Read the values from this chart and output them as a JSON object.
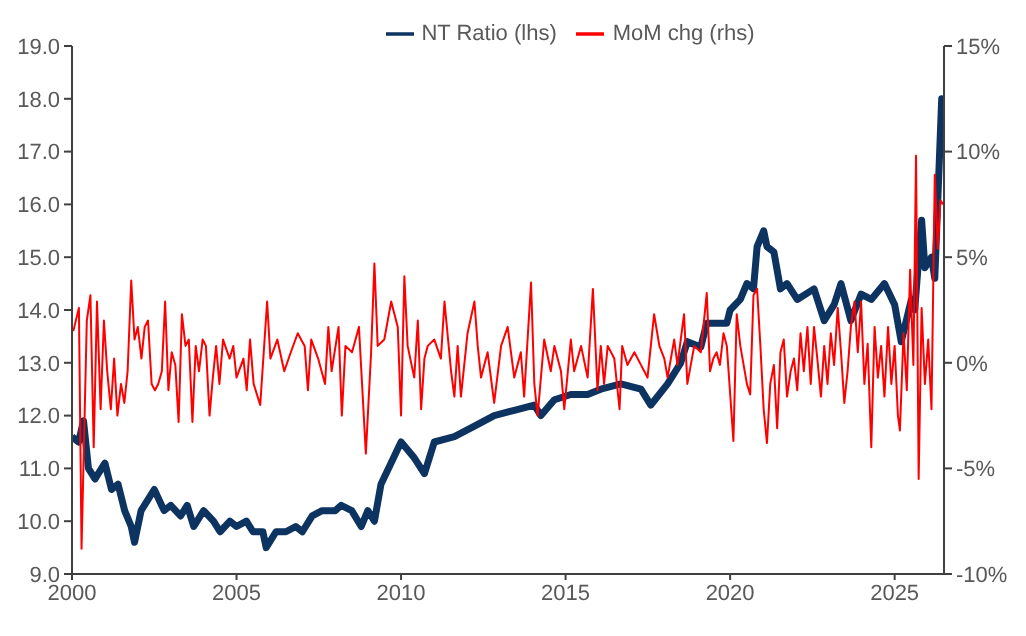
{
  "chart_data": {
    "type": "line",
    "legend": "top",
    "grid": false,
    "marker": "none",
    "line_style": "solid",
    "xlim": [
      2000,
      2026.5
    ],
    "xticks": [
      2000,
      2005,
      2010,
      2015,
      2020,
      2025
    ],
    "ylim": [
      9,
      19
    ],
    "yticks": [
      {
        "value": 9,
        "label": "9.0"
      },
      {
        "value": 10,
        "label": "10.0"
      },
      {
        "value": 11,
        "label": "11.0"
      },
      {
        "value": 12,
        "label": "12.0"
      },
      {
        "value": 13,
        "label": "13.0"
      },
      {
        "value": 14,
        "label": "14.0"
      },
      {
        "value": 15,
        "label": "15.0"
      },
      {
        "value": 16,
        "label": "16.0"
      },
      {
        "value": 17,
        "label": "17.0"
      },
      {
        "value": 18,
        "label": "18.0"
      },
      {
        "value": 19,
        "label": "19.0"
      }
    ],
    "y2lim": [
      -10,
      15
    ],
    "y2ticks": [
      {
        "value": -10,
        "label": "-10%"
      },
      {
        "value": -5,
        "label": "-5%"
      },
      {
        "value": 0,
        "label": "0%"
      },
      {
        "value": 5,
        "label": "5%"
      },
      {
        "value": 10,
        "label": "10%"
      },
      {
        "value": 15,
        "label": "15%"
      }
    ],
    "series": [
      {
        "name": "NT Ratio (lhs)",
        "color": "#0d3361",
        "x": [
          2000.0,
          2000.2,
          2000.35,
          2000.5,
          2000.7,
          2000.9,
          2001.0,
          2001.2,
          2001.4,
          2001.6,
          2001.8,
          2001.9,
          2002.1,
          2002.3,
          2002.5,
          2002.8,
          2003.0,
          2003.3,
          2003.5,
          2003.7,
          2004.0,
          2004.3,
          2004.5,
          2004.8,
          2005.0,
          2005.3,
          2005.5,
          2005.8,
          2005.9,
          2006.2,
          2006.5,
          2006.8,
          2007.0,
          2007.3,
          2007.6,
          2008.0,
          2008.18,
          2008.5,
          2008.79,
          2008.99,
          2009.19,
          2009.39,
          2010.0,
          2010.4,
          2010.71,
          2011.01,
          2011.62,
          2012.23,
          2012.83,
          2013.44,
          2014.05,
          2014.25,
          2014.66,
          2015.16,
          2015.67,
          2016.07,
          2016.68,
          2017.29,
          2017.59,
          2018.1,
          2018.5,
          2018.7,
          2019.11,
          2019.29,
          2019.9,
          2020.0,
          2020.31,
          2020.51,
          2020.71,
          2020.82,
          2021.02,
          2021.12,
          2021.33,
          2021.53,
          2021.73,
          2022.04,
          2022.55,
          2022.86,
          2023.16,
          2023.37,
          2023.67,
          2023.98,
          2024.29,
          2024.69,
          2025.0,
          2025.2,
          2025.51,
          2025.61,
          2025.82,
          2025.92,
          2026.12,
          2026.22,
          2026.43,
          2026.49
        ],
        "values": [
          11.6,
          11.5,
          11.9,
          11.0,
          10.8,
          11.0,
          11.1,
          10.6,
          10.7,
          10.2,
          9.9,
          9.6,
          10.2,
          10.4,
          10.6,
          10.2,
          10.3,
          10.1,
          10.3,
          9.9,
          10.2,
          10.0,
          9.8,
          10.0,
          9.9,
          10.0,
          9.8,
          9.8,
          9.5,
          9.8,
          9.8,
          9.9,
          9.8,
          10.1,
          10.2,
          10.2,
          10.3,
          10.2,
          9.9,
          10.2,
          10.0,
          10.7,
          11.5,
          11.2,
          10.9,
          11.5,
          11.6,
          11.8,
          12.0,
          12.1,
          12.2,
          12.0,
          12.3,
          12.4,
          12.4,
          12.5,
          12.6,
          12.5,
          12.2,
          12.6,
          13.0,
          13.4,
          13.3,
          13.75,
          13.75,
          14.0,
          14.2,
          14.5,
          14.4,
          15.2,
          15.5,
          15.2,
          15.1,
          14.4,
          14.5,
          14.2,
          14.4,
          13.8,
          14.1,
          14.5,
          13.8,
          14.3,
          14.2,
          14.5,
          14.1,
          13.4,
          14.2,
          14.0,
          15.7,
          14.8,
          15.0,
          14.6,
          18.0,
          17.9
        ]
      },
      {
        "name": "MoM chg (rhs)",
        "color": "#ff0000",
        "axis": "y2",
        "x": [
          2000.04,
          2000.21,
          2000.29,
          2000.45,
          2000.56,
          2000.66,
          2000.76,
          2000.87,
          2000.97,
          2001.07,
          2001.18,
          2001.28,
          2001.38,
          2001.49,
          2001.59,
          2001.69,
          2001.8,
          2001.9,
          2002.0,
          2002.11,
          2002.21,
          2002.31,
          2002.42,
          2002.52,
          2002.62,
          2002.73,
          2002.83,
          2002.93,
          2003.03,
          2003.14,
          2003.24,
          2003.34,
          2003.45,
          2003.55,
          2003.66,
          2003.76,
          2003.86,
          2003.97,
          2004.07,
          2004.18,
          2004.28,
          2004.38,
          2004.48,
          2004.59,
          2004.79,
          2004.9,
          2005.0,
          2005.21,
          2005.31,
          2005.41,
          2005.52,
          2005.72,
          2005.93,
          2006.03,
          2006.24,
          2006.45,
          2006.65,
          2006.86,
          2007.07,
          2007.17,
          2007.27,
          2007.48,
          2007.69,
          2007.79,
          2007.89,
          2008.1,
          2008.2,
          2008.31,
          2008.51,
          2008.72,
          2008.93,
          2009.09,
          2009.19,
          2009.29,
          2009.49,
          2009.7,
          2009.9,
          2010.0,
          2010.1,
          2010.2,
          2010.4,
          2010.51,
          2010.61,
          2010.71,
          2010.81,
          2011.01,
          2011.21,
          2011.32,
          2011.52,
          2011.62,
          2011.72,
          2011.82,
          2012.02,
          2012.23,
          2012.33,
          2012.43,
          2012.63,
          2012.83,
          2013.04,
          2013.24,
          2013.44,
          2013.64,
          2013.74,
          2013.95,
          2014.05,
          2014.15,
          2014.35,
          2014.55,
          2014.66,
          2014.86,
          2014.96,
          2015.16,
          2015.26,
          2015.47,
          2015.67,
          2015.83,
          2015.97,
          2016.07,
          2016.17,
          2016.28,
          2016.48,
          2016.64,
          2016.72,
          2016.88,
          2017.09,
          2017.29,
          2017.49,
          2017.69,
          2017.85,
          2018.0,
          2018.1,
          2018.3,
          2018.4,
          2018.6,
          2018.7,
          2018.91,
          2019.11,
          2019.29,
          2019.39,
          2019.49,
          2019.59,
          2019.69,
          2019.8,
          2019.9,
          2020.1,
          2020.2,
          2020.31,
          2020.51,
          2020.61,
          2020.71,
          2020.82,
          2020.92,
          2021.02,
          2021.12,
          2021.22,
          2021.33,
          2021.43,
          2021.53,
          2021.63,
          2021.73,
          2021.84,
          2021.94,
          2022.04,
          2022.14,
          2022.24,
          2022.35,
          2022.45,
          2022.55,
          2022.65,
          2022.76,
          2022.86,
          2022.96,
          2023.06,
          2023.16,
          2023.27,
          2023.37,
          2023.47,
          2023.57,
          2023.67,
          2023.78,
          2023.88,
          2023.98,
          2024.08,
          2024.18,
          2024.29,
          2024.39,
          2024.49,
          2024.59,
          2024.69,
          2024.8,
          2024.9,
          2025.0,
          2025.1,
          2025.16,
          2025.27,
          2025.37,
          2025.47,
          2025.57,
          2025.65,
          2025.73,
          2025.82,
          2025.92,
          2026.02,
          2026.12,
          2026.22,
          2026.31,
          2026.39,
          2026.47
        ],
        "values": [
          1.5,
          2.6,
          -8.8,
          2.0,
          3.2,
          -4.0,
          2.9,
          -2.2,
          2.0,
          -0.4,
          -2.2,
          0.2,
          -2.5,
          -1.0,
          -1.9,
          -0.4,
          3.9,
          1.1,
          1.7,
          0.2,
          1.7,
          2.0,
          -1.0,
          -1.3,
          -1.0,
          -0.4,
          2.9,
          -1.3,
          0.5,
          -0.1,
          -2.8,
          2.3,
          0.8,
          1.1,
          -2.8,
          0.8,
          -0.4,
          1.1,
          0.8,
          -2.5,
          -0.7,
          0.8,
          -1.0,
          1.1,
          0.2,
          0.8,
          -0.7,
          0.2,
          -1.3,
          1.1,
          -1.0,
          -2.0,
          2.9,
          0.2,
          1.1,
          -0.4,
          0.5,
          1.4,
          0.8,
          -1.3,
          1.1,
          0.2,
          -1.0,
          1.7,
          -0.4,
          1.7,
          -2.5,
          0.8,
          0.5,
          1.7,
          -4.3,
          0.5,
          4.7,
          0.8,
          1.1,
          2.9,
          1.7,
          -2.5,
          4.1,
          0.8,
          -0.7,
          2.0,
          -2.2,
          0.2,
          0.8,
          1.1,
          0.2,
          2.9,
          -0.4,
          -1.6,
          0.8,
          -1.6,
          1.4,
          2.9,
          0.8,
          -0.7,
          0.5,
          -1.9,
          0.8,
          1.7,
          -0.7,
          0.5,
          -1.6,
          3.8,
          -1.0,
          -2.5,
          1.1,
          -0.4,
          0.8,
          -0.4,
          -2.2,
          1.1,
          -0.4,
          0.8,
          -0.7,
          3.5,
          -1.3,
          0.8,
          -1.0,
          0.8,
          0.2,
          -2.2,
          0.8,
          -0.1,
          0.5,
          -0.1,
          -0.7,
          2.3,
          0.8,
          0.2,
          -0.7,
          1.1,
          -0.1,
          2.3,
          -1.0,
          0.8,
          0.5,
          3.3,
          -0.4,
          0.2,
          0.5,
          -0.1,
          1.4,
          0.8,
          -3.7,
          2.3,
          0.8,
          -1.0,
          -1.5,
          3.2,
          3.5,
          0.8,
          -2.2,
          -3.8,
          -1.0,
          -0.1,
          -3.1,
          0.5,
          1.1,
          -1.6,
          -0.4,
          0.2,
          -1.3,
          1.4,
          -0.4,
          1.7,
          -1.0,
          1.7,
          0.2,
          -1.6,
          0.8,
          -1.0,
          1.4,
          -0.1,
          2.6,
          0.5,
          -1.9,
          -0.4,
          1.7,
          2.9,
          0.5,
          2.9,
          -1.0,
          0.9,
          -4.0,
          1.7,
          -0.7,
          0.8,
          -1.6,
          1.7,
          -1.0,
          0.8,
          -2.5,
          -3.2,
          1.4,
          -1.3,
          4.4,
          -0.1,
          9.8,
          -5.5,
          2.6,
          -1.0,
          1.1,
          -2.2,
          8.9,
          5.4,
          7.7,
          7.5
        ]
      }
    ]
  }
}
